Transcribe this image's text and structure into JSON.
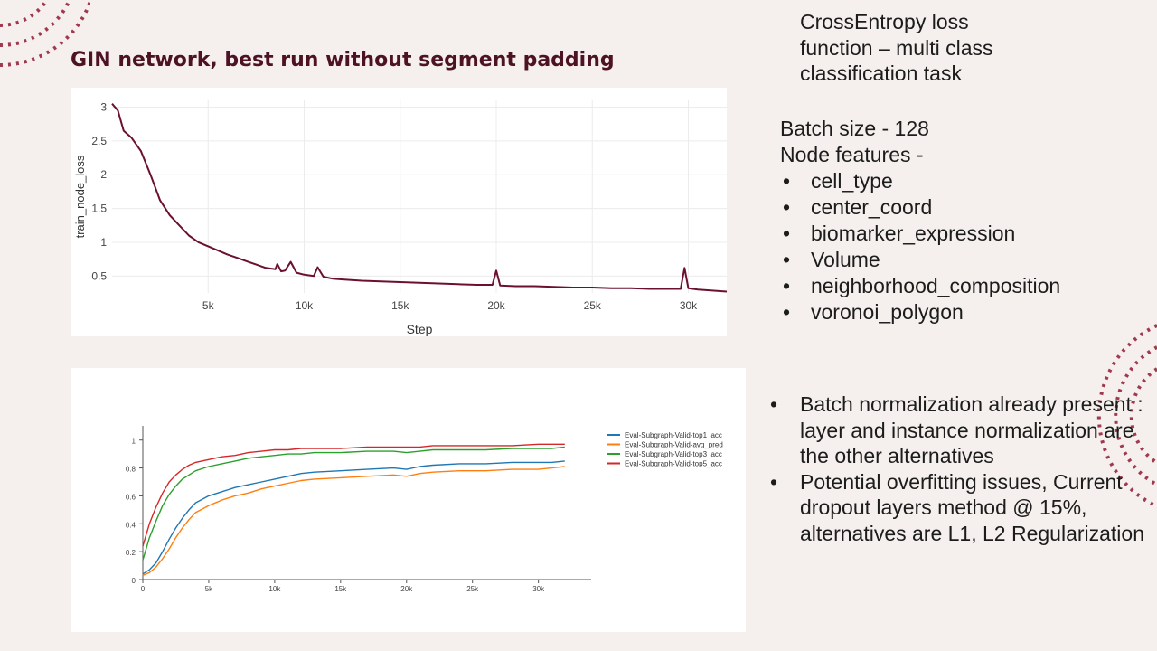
{
  "slide": {
    "title": "GIN network, best run without segment padding",
    "loss_note": "CrossEntropy loss function – multi class classification task",
    "batch_size": "Batch size - 128",
    "node_features_label": "Node features -",
    "node_features": [
      "cell_type",
      "center_coord",
      "biomarker_expression",
      "Volume",
      "neighborhood_composition",
      "voronoi_polygon"
    ],
    "notes": [
      "Batch normalization already present : layer and instance normalization are the other alternatives",
      "Potential overfitting issues, Current dropout layers method @ 15%, alternatives are L1, L2 Regularization"
    ],
    "bullet_glyph": "•",
    "colors": {
      "title": "#4d1223",
      "deco": "#a1394e",
      "background": "#f5f0ed"
    }
  },
  "chart_data": [
    {
      "type": "line",
      "xlabel": "Step",
      "ylabel": "train_node_loss",
      "xlim": [
        0,
        32000
      ],
      "ylim": [
        0.25,
        3.1
      ],
      "x_ticks": [
        5000,
        10000,
        15000,
        20000,
        25000,
        30000
      ],
      "x_tick_labels": [
        "5k",
        "10k",
        "15k",
        "20k",
        "25k",
        "30k"
      ],
      "y_ticks": [
        0.5,
        1,
        1.5,
        2,
        2.5,
        3
      ],
      "y_tick_labels": [
        "0.5",
        "1",
        "1.5",
        "2",
        "2.5",
        "3"
      ],
      "grid": true,
      "series": [
        {
          "color": "#6b1030",
          "x": [
            0,
            300,
            600,
            1000,
            1500,
            2000,
            2500,
            3000,
            3500,
            4000,
            4500,
            5000,
            5500,
            6000,
            6500,
            7000,
            7500,
            8000,
            8500,
            8600,
            8800,
            9000,
            9300,
            9600,
            10000,
            10500,
            10700,
            11000,
            11500,
            12000,
            13000,
            14000,
            15000,
            16000,
            17000,
            18000,
            19000,
            19800,
            20000,
            20200,
            21000,
            22000,
            23000,
            24000,
            25000,
            26000,
            27000,
            28000,
            29000,
            29600,
            29800,
            30000,
            30500,
            31000,
            31500,
            32000
          ],
          "y": [
            3.05,
            2.95,
            2.65,
            2.55,
            2.35,
            2.0,
            1.62,
            1.4,
            1.25,
            1.1,
            1.0,
            0.94,
            0.88,
            0.82,
            0.77,
            0.72,
            0.67,
            0.62,
            0.6,
            0.68,
            0.57,
            0.58,
            0.71,
            0.55,
            0.52,
            0.5,
            0.63,
            0.49,
            0.46,
            0.45,
            0.43,
            0.42,
            0.41,
            0.4,
            0.39,
            0.38,
            0.37,
            0.37,
            0.58,
            0.36,
            0.35,
            0.35,
            0.34,
            0.33,
            0.33,
            0.32,
            0.32,
            0.31,
            0.31,
            0.31,
            0.62,
            0.32,
            0.3,
            0.29,
            0.28,
            0.27
          ]
        }
      ]
    },
    {
      "type": "line",
      "xlabel": "",
      "ylabel": "",
      "xlim": [
        0,
        34000
      ],
      "ylim": [
        0,
        1.05
      ],
      "x_ticks": [
        0,
        5000,
        10000,
        15000,
        20000,
        25000,
        30000
      ],
      "x_tick_labels": [
        "0",
        "5k",
        "10k",
        "15k",
        "20k",
        "25k",
        "30k"
      ],
      "y_ticks": [
        0,
        0.2,
        0.4,
        0.6,
        0.8,
        1
      ],
      "y_tick_labels": [
        "0",
        "0.2",
        "0.4",
        "0.6",
        "0.8",
        "1"
      ],
      "legend_position": "right",
      "series": [
        {
          "name": "Eval-Subgraph-Valid-top1_acc",
          "color": "#1f77b4",
          "x": [
            0,
            500,
            1000,
            1500,
            2000,
            2500,
            3000,
            3500,
            4000,
            5000,
            6000,
            7000,
            8000,
            9000,
            10000,
            11000,
            12000,
            13000,
            15000,
            17000,
            19000,
            20000,
            21000,
            22000,
            24000,
            26000,
            28000,
            30000,
            31000,
            32000
          ],
          "y": [
            0.04,
            0.07,
            0.12,
            0.2,
            0.29,
            0.37,
            0.44,
            0.5,
            0.55,
            0.6,
            0.63,
            0.66,
            0.68,
            0.7,
            0.72,
            0.74,
            0.76,
            0.77,
            0.78,
            0.79,
            0.8,
            0.79,
            0.81,
            0.82,
            0.83,
            0.83,
            0.84,
            0.84,
            0.84,
            0.85
          ]
        },
        {
          "name": "Eval-Subgraph-Valid-avg_pred",
          "color": "#ff7f0e",
          "x": [
            0,
            500,
            1000,
            1500,
            2000,
            2500,
            3000,
            3500,
            4000,
            5000,
            6000,
            7000,
            8000,
            9000,
            10000,
            11000,
            12000,
            13000,
            15000,
            17000,
            19000,
            20000,
            21000,
            22000,
            24000,
            26000,
            28000,
            30000,
            31000,
            32000
          ],
          "y": [
            0.03,
            0.05,
            0.09,
            0.15,
            0.22,
            0.3,
            0.37,
            0.43,
            0.48,
            0.53,
            0.57,
            0.6,
            0.62,
            0.65,
            0.67,
            0.69,
            0.71,
            0.72,
            0.73,
            0.74,
            0.75,
            0.74,
            0.76,
            0.77,
            0.78,
            0.78,
            0.79,
            0.79,
            0.8,
            0.81
          ]
        },
        {
          "name": "Eval-Subgraph-Valid-top3_acc",
          "color": "#2ca02c",
          "x": [
            0,
            500,
            1000,
            1500,
            2000,
            2500,
            3000,
            3500,
            4000,
            5000,
            6000,
            7000,
            8000,
            9000,
            10000,
            11000,
            12000,
            13000,
            15000,
            17000,
            19000,
            20000,
            21000,
            22000,
            24000,
            26000,
            28000,
            30000,
            31000,
            32000
          ],
          "y": [
            0.14,
            0.3,
            0.42,
            0.53,
            0.61,
            0.67,
            0.72,
            0.75,
            0.78,
            0.81,
            0.83,
            0.85,
            0.87,
            0.88,
            0.89,
            0.9,
            0.9,
            0.91,
            0.91,
            0.92,
            0.92,
            0.91,
            0.92,
            0.93,
            0.93,
            0.93,
            0.94,
            0.94,
            0.94,
            0.95
          ]
        },
        {
          "name": "Eval-Subgraph-Valid-top5_acc",
          "color": "#d62728",
          "x": [
            0,
            500,
            1000,
            1500,
            2000,
            2500,
            3000,
            3500,
            4000,
            5000,
            6000,
            7000,
            8000,
            9000,
            10000,
            11000,
            12000,
            13000,
            15000,
            17000,
            19000,
            20000,
            21000,
            22000,
            24000,
            26000,
            28000,
            30000,
            31000,
            32000
          ],
          "y": [
            0.24,
            0.4,
            0.52,
            0.62,
            0.7,
            0.75,
            0.79,
            0.82,
            0.84,
            0.86,
            0.88,
            0.89,
            0.91,
            0.92,
            0.93,
            0.93,
            0.94,
            0.94,
            0.94,
            0.95,
            0.95,
            0.95,
            0.95,
            0.96,
            0.96,
            0.96,
            0.96,
            0.97,
            0.97,
            0.97
          ]
        }
      ]
    }
  ]
}
